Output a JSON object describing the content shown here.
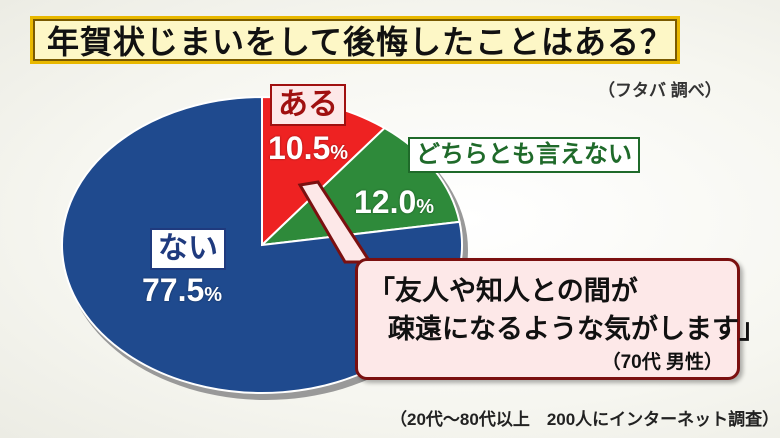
{
  "title": "年賀状じまいをして後悔したことはある？",
  "source": "（フタバ 調べ）",
  "chart_data": {
    "type": "pie",
    "title": "年賀状じまいをして後悔したことはある？",
    "start": "12 o'clock, clockwise",
    "slices": [
      {
        "label": "ある",
        "value": 10.5,
        "value_label": "10.5",
        "color": "#ee2222"
      },
      {
        "label": "どちらとも言えない",
        "value": 12.0,
        "value_label": "12.0",
        "color": "#2e8a3a"
      },
      {
        "label": "ない",
        "value": 77.5,
        "value_label": "77.5",
        "color": "#1f4a8e"
      }
    ],
    "unit": "%"
  },
  "quote": {
    "line1": "「友人や知人との間が",
    "line2": "疎遠になるような気がします」",
    "speaker": "（70代 男性）"
  },
  "note": "（20代～80代以上　200人にインターネット調査）"
}
